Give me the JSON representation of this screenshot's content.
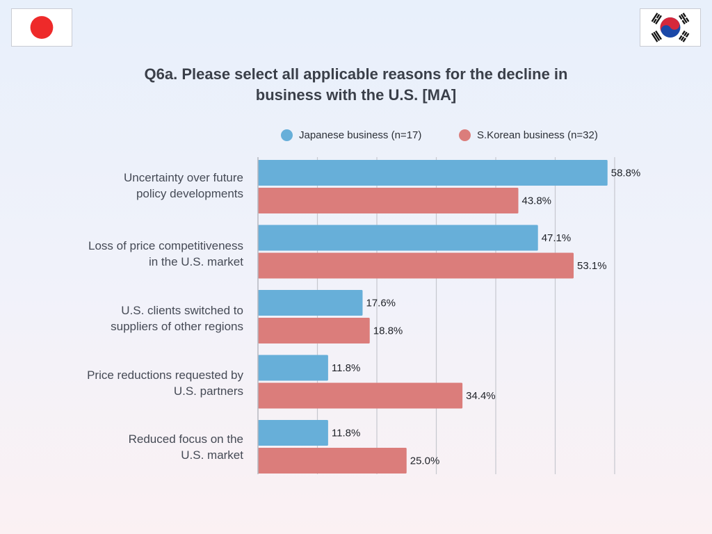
{
  "colors": {
    "japan": "#67afd9",
    "korea": "#db7d7b",
    "grid": "#c6c8ce",
    "axis": "#b5b8bf"
  },
  "icons": {
    "left_flag": "japan-flag-icon",
    "right_flag": "south-korea-flag-icon"
  },
  "chart_data": {
    "type": "bar",
    "orientation": "horizontal",
    "title_lines": [
      "Q6a. Please select all applicable reasons for the decline in",
      "business with the U.S. [MA]"
    ],
    "categories": [
      [
        "Uncertainty over future",
        "policy developments"
      ],
      [
        "Loss of price competitiveness",
        "in the U.S. market"
      ],
      [
        "U.S. clients switched to",
        "suppliers of other regions"
      ],
      [
        "Price reductions requested by",
        "U.S. partners"
      ],
      [
        "Reduced focus on the",
        "U.S. market"
      ]
    ],
    "series": [
      {
        "name": "Japanese business (n=17)",
        "color": "#67afd9",
        "values": [
          58.8,
          47.1,
          17.6,
          11.8,
          11.8
        ],
        "labels": [
          "58.8%",
          "47.1%",
          "17.6%",
          "11.8%",
          "11.8%"
        ]
      },
      {
        "name": "S.Korean business (n=32)",
        "color": "#db7d7b",
        "values": [
          43.8,
          53.1,
          18.8,
          34.4,
          25.0
        ],
        "labels": [
          "43.8%",
          "53.1%",
          "18.8%",
          "34.4%",
          "25.0%"
        ]
      }
    ],
    "xlim": [
      0,
      60
    ],
    "grid": true,
    "gridlines_at": [
      0,
      10,
      20,
      30,
      40,
      50,
      60
    ],
    "tick_labels_shown": false,
    "legend_position": "top"
  }
}
